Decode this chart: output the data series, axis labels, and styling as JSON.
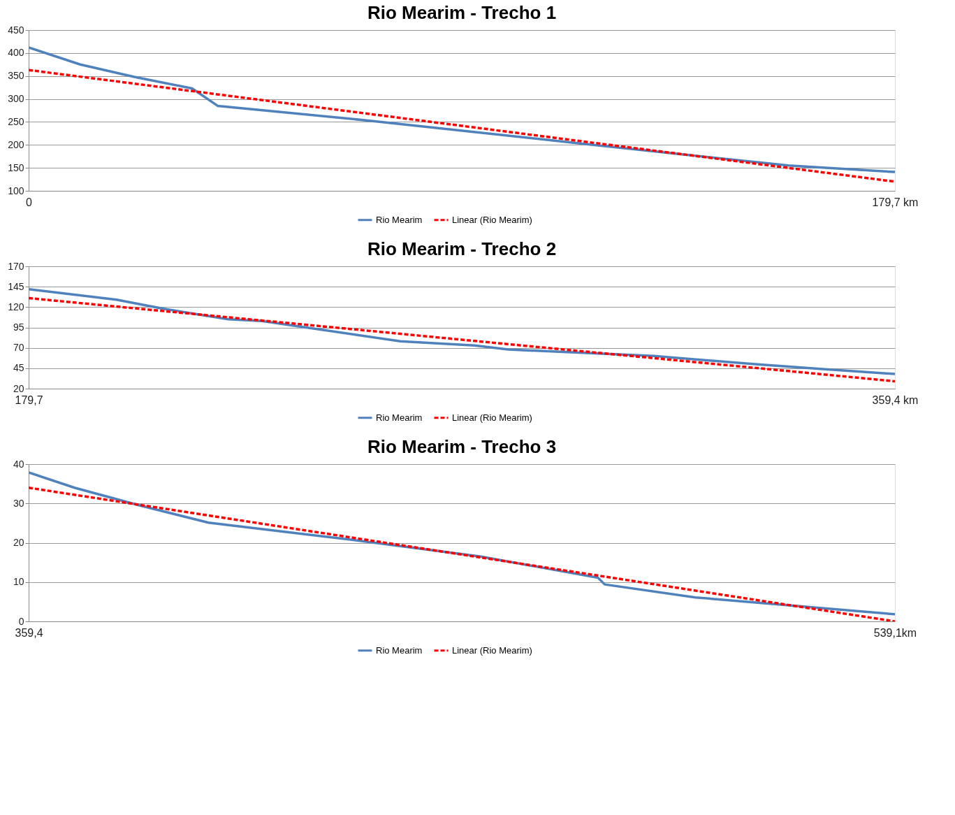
{
  "chart_data": [
    {
      "type": "line",
      "title": "Rio Mearim - Trecho 1",
      "xlim": [
        0,
        179.7
      ],
      "xticks": [
        0,
        {
          "value": 179.7,
          "label": "179,7 km"
        }
      ],
      "ylim": [
        100,
        450
      ],
      "yticks": [
        100,
        150,
        200,
        250,
        300,
        350,
        400,
        450
      ],
      "grid": "y",
      "legend": "bottom",
      "series": [
        {
          "name": "Rio Mearim",
          "color": "#4f81bd",
          "line_style": "solid",
          "x": [
            0,
            10.7,
            21.9,
            33.9,
            39.2,
            70.4,
            115.4,
            157.6,
            179.7
          ],
          "values": [
            412,
            375,
            348,
            323,
            285,
            253,
            202,
            155,
            141
          ]
        },
        {
          "name": "Linear (Rio Mearim)",
          "color": "#ff0000",
          "line_style": "dashed",
          "x": [
            0,
            179.7
          ],
          "values": [
            363,
            120
          ]
        }
      ]
    },
    {
      "type": "line",
      "title": "Rio Mearim - Trecho 2",
      "xlim": [
        179.7,
        359.4
      ],
      "xticks": [
        {
          "value": 179.7,
          "label": "179,7"
        },
        {
          "value": 359.4,
          "label": "359,4 km"
        }
      ],
      "ylim": [
        20,
        170
      ],
      "yticks": [
        20,
        45,
        70,
        95,
        120,
        145,
        170
      ],
      "grid": "y",
      "legend": "bottom",
      "series": [
        {
          "name": "Rio Mearim",
          "color": "#4f81bd",
          "line_style": "solid",
          "x": [
            179.7,
            197.9,
            207.7,
            221.1,
            228.1,
            256.8,
            272.2,
            279.2,
            309.4,
            330.4,
            344.4,
            359.4
          ],
          "values": [
            142,
            129,
            118,
            105,
            103,
            78,
            73,
            68,
            60,
            50,
            44,
            38
          ]
        },
        {
          "name": "Linear (Rio Mearim)",
          "color": "#ff0000",
          "line_style": "dashed",
          "x": [
            179.7,
            359.4
          ],
          "values": [
            131,
            29
          ]
        }
      ]
    },
    {
      "type": "line",
      "title": "Rio Mearim - Trecho 3",
      "xlim": [
        359.4,
        539.1
      ],
      "xticks": [
        {
          "value": 359.4,
          "label": "359,4"
        },
        {
          "value": 539.1,
          "label": "539,1km"
        }
      ],
      "ylim": [
        0,
        40
      ],
      "yticks": [
        0,
        10,
        20,
        30,
        40
      ],
      "grid": "y",
      "legend": "bottom",
      "series": [
        {
          "name": "Rio Mearim",
          "color": "#4f81bd",
          "line_style": "solid",
          "x": [
            359.4,
            368.9,
            382.1,
            396.7,
            428.1,
            453.2,
            477.5,
            478.9,
            497.7,
            539.1
          ],
          "values": [
            37.9,
            34.0,
            29.6,
            25.1,
            20.5,
            16.5,
            11.1,
            9.4,
            6.1,
            1.8
          ]
        },
        {
          "name": "Linear (Rio Mearim)",
          "color": "#ff0000",
          "line_style": "dashed",
          "x": [
            359.4,
            539.1
          ],
          "values": [
            34,
            0
          ]
        }
      ]
    }
  ]
}
